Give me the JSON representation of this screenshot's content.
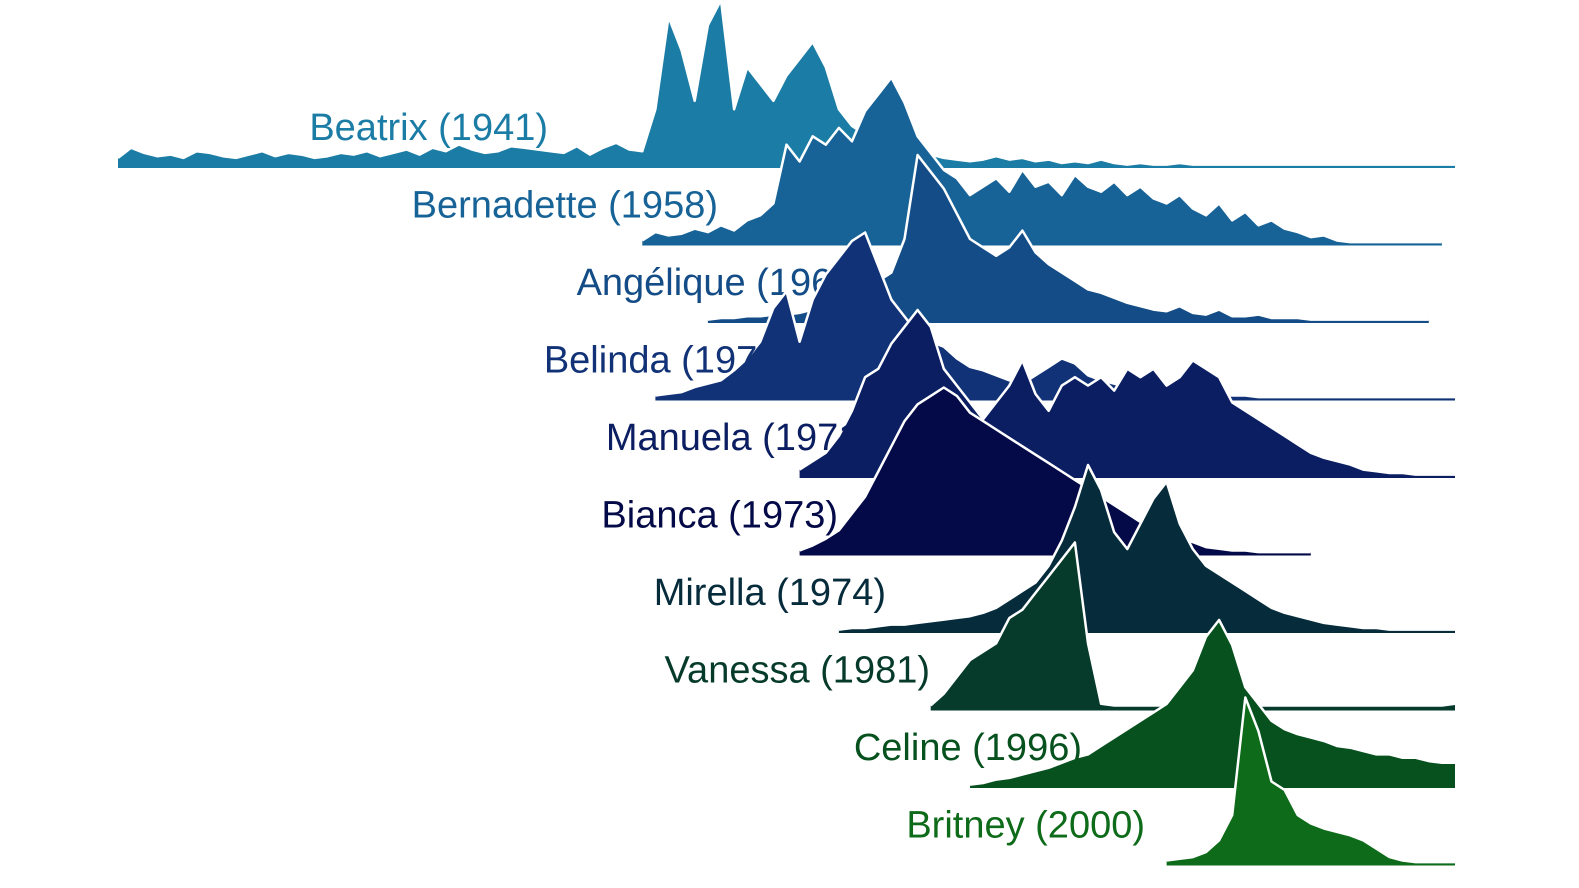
{
  "chart_data": {
    "type": "area",
    "subtype": "ridgeline",
    "title": "",
    "xlabel": "",
    "ylabel": "",
    "xlim": [
      1915,
      2017
    ],
    "grid": false,
    "legend": "none",
    "series": [
      {
        "name": "Beatrix (1941)",
        "color": "#1B7CA5",
        "x": [
          1915,
          1916,
          1917,
          1918,
          1919,
          1920,
          1921,
          1922,
          1923,
          1924,
          1925,
          1926,
          1927,
          1928,
          1929,
          1930,
          1931,
          1932,
          1933,
          1934,
          1935,
          1936,
          1937,
          1938,
          1939,
          1940,
          1941,
          1942,
          1943,
          1944,
          1945,
          1946,
          1947,
          1948,
          1949,
          1950,
          1951,
          1952,
          1953,
          1954,
          1955,
          1956,
          1957,
          1958,
          1959,
          1960,
          1961,
          1962,
          1963,
          1964,
          1965,
          1966,
          1967,
          1968,
          1969,
          1970,
          1971,
          1972,
          1973,
          1974,
          1975,
          1976,
          1977,
          1978,
          1979,
          1980,
          1981,
          1982,
          1983,
          1984,
          1985,
          1986,
          1987,
          1988,
          1989,
          1990,
          1991,
          1992,
          1993,
          1994,
          1995,
          1996,
          1997,
          1998,
          1999,
          2000,
          2001,
          2002,
          2003,
          2004,
          2005,
          2006,
          2007,
          2008,
          2009,
          2010,
          2011,
          2012,
          2013,
          2014,
          2015,
          2016,
          2017
        ],
        "values": [
          0.6,
          1.2,
          0.9,
          0.7,
          0.8,
          0.6,
          1.0,
          0.9,
          0.7,
          0.6,
          0.8,
          1.0,
          0.7,
          0.9,
          0.8,
          0.6,
          0.7,
          0.9,
          0.8,
          1.0,
          0.7,
          0.9,
          1.1,
          0.8,
          1.2,
          1.0,
          1.4,
          1.1,
          0.9,
          1.0,
          1.3,
          1.2,
          1.1,
          1.0,
          0.9,
          1.3,
          0.8,
          1.2,
          1.5,
          1.1,
          1.0,
          3.5,
          9.0,
          7.0,
          4.0,
          8.5,
          10.0,
          3.5,
          6.0,
          5.0,
          4.0,
          5.5,
          6.5,
          7.5,
          6.0,
          3.5,
          2.5,
          2.0,
          1.0,
          1.5,
          1.2,
          1.0,
          0.8,
          0.6,
          0.5,
          0.4,
          0.5,
          0.7,
          0.5,
          0.6,
          0.4,
          0.5,
          0.3,
          0.4,
          0.3,
          0.5,
          0.3,
          0.2,
          0.3,
          0.2,
          0.2,
          0.3,
          0.2,
          0.2,
          0.2,
          0.2,
          0.2,
          0.2,
          0.2,
          0.2,
          0.2,
          0.2,
          0.2,
          0.2,
          0.2,
          0.2,
          0.2,
          0.2,
          0.2,
          0.2,
          0.2,
          0.2,
          0.2
        ]
      },
      {
        "name": "Bernadette (1958)",
        "color": "#176397",
        "x": [
          1955,
          1956,
          1957,
          1958,
          1959,
          1960,
          1961,
          1962,
          1963,
          1964,
          1965,
          1966,
          1967,
          1968,
          1969,
          1970,
          1971,
          1972,
          1973,
          1974,
          1975,
          1976,
          1977,
          1978,
          1979,
          1980,
          1981,
          1982,
          1983,
          1984,
          1985,
          1986,
          1987,
          1988,
          1989,
          1990,
          1991,
          1992,
          1993,
          1994,
          1995,
          1996,
          1997,
          1998,
          1999,
          2000,
          2001,
          2002,
          2003,
          2004,
          2005,
          2006,
          2007,
          2008,
          2009,
          2010,
          2011,
          2012,
          2013,
          2014,
          2015,
          2016
        ],
        "values": [
          0.3,
          0.8,
          0.6,
          0.7,
          1.0,
          0.8,
          1.2,
          0.9,
          1.5,
          1.8,
          2.5,
          6.0,
          5.0,
          6.5,
          6.0,
          7.0,
          6.2,
          8.0,
          9.0,
          10.0,
          8.5,
          6.5,
          5.5,
          4.5,
          4.0,
          3.0,
          3.5,
          4.0,
          3.2,
          4.5,
          3.5,
          3.8,
          3.0,
          4.2,
          3.5,
          3.2,
          3.8,
          3.0,
          3.5,
          2.8,
          2.5,
          3.0,
          2.2,
          1.8,
          2.5,
          1.5,
          2.0,
          1.2,
          1.5,
          1.0,
          0.8,
          0.5,
          0.6,
          0.3,
          0.2,
          0.2,
          0.2,
          0.2,
          0.2,
          0.2,
          0.2,
          0.2
        ]
      },
      {
        "name": "Angélique (1968)",
        "color": "#134C86",
        "x": [
          1960,
          1961,
          1962,
          1963,
          1964,
          1965,
          1966,
          1967,
          1968,
          1969,
          1970,
          1971,
          1972,
          1973,
          1974,
          1975,
          1976,
          1977,
          1978,
          1979,
          1980,
          1981,
          1982,
          1983,
          1984,
          1985,
          1986,
          1987,
          1988,
          1989,
          1990,
          1991,
          1992,
          1993,
          1994,
          1995,
          1996,
          1997,
          1998,
          1999,
          2000,
          2001,
          2002,
          2003,
          2004,
          2005,
          2006,
          2007,
          2008,
          2009,
          2010,
          2011,
          2012,
          2013,
          2014,
          2015
        ],
        "values": [
          0.2,
          0.3,
          0.3,
          0.4,
          0.4,
          0.5,
          0.5,
          0.6,
          0.8,
          1.0,
          1.2,
          2.0,
          1.8,
          2.5,
          3.0,
          5.0,
          10.0,
          9.0,
          8.0,
          6.5,
          5.0,
          4.5,
          4.0,
          4.5,
          5.5,
          4.2,
          3.5,
          3.0,
          2.5,
          2.0,
          1.8,
          1.5,
          1.2,
          1.0,
          0.8,
          0.7,
          1.0,
          0.6,
          0.5,
          0.8,
          0.4,
          0.4,
          0.5,
          0.3,
          0.3,
          0.3,
          0.2,
          0.2,
          0.2,
          0.2,
          0.2,
          0.2,
          0.2,
          0.2,
          0.2,
          0.2
        ]
      },
      {
        "name": "Belinda (1970)",
        "color": "#113276",
        "x": [
          1956,
          1957,
          1958,
          1959,
          1960,
          1961,
          1962,
          1963,
          1964,
          1965,
          1966,
          1967,
          1968,
          1969,
          1970,
          1971,
          1972,
          1973,
          1974,
          1975,
          1976,
          1977,
          1978,
          1979,
          1980,
          1981,
          1982,
          1983,
          1984,
          1985,
          1986,
          1987,
          1988,
          1989,
          1990,
          1991,
          1992,
          1993,
          1994,
          1995,
          1996,
          1997,
          1998,
          1999,
          2000,
          2001,
          2002,
          2003,
          2004,
          2005,
          2006,
          2007,
          2008,
          2009,
          2010,
          2011,
          2012,
          2013,
          2014,
          2015,
          2016,
          2017
        ],
        "values": [
          0.3,
          0.4,
          0.5,
          0.8,
          1.0,
          1.2,
          1.8,
          2.5,
          3.5,
          5.5,
          6.5,
          3.5,
          6.0,
          7.5,
          8.5,
          9.5,
          10.0,
          8.0,
          6.0,
          5.0,
          4.0,
          3.5,
          3.2,
          2.5,
          2.0,
          1.8,
          1.5,
          1.2,
          1.0,
          1.5,
          2.0,
          2.5,
          2.2,
          1.5,
          1.2,
          1.0,
          0.8,
          0.9,
          0.6,
          0.5,
          0.7,
          0.4,
          0.4,
          0.3,
          0.3,
          0.3,
          0.2,
          0.2,
          0.2,
          0.2,
          0.2,
          0.2,
          0.2,
          0.2,
          0.2,
          0.2,
          0.2,
          0.2,
          0.2,
          0.2,
          0.2,
          0.2
        ]
      },
      {
        "name": "Manuela (1971)",
        "color": "#0B1E62",
        "x": [
          1967,
          1968,
          1969,
          1970,
          1971,
          1972,
          1973,
          1974,
          1975,
          1976,
          1977,
          1978,
          1979,
          1980,
          1981,
          1982,
          1983,
          1984,
          1985,
          1986,
          1987,
          1988,
          1989,
          1990,
          1991,
          1992,
          1993,
          1994,
          1995,
          1996,
          1997,
          1998,
          1999,
          2000,
          2001,
          2002,
          2003,
          2004,
          2005,
          2006,
          2007,
          2008,
          2009,
          2010,
          2011,
          2012,
          2013,
          2014,
          2015,
          2016,
          2017
        ],
        "values": [
          0.5,
          1.0,
          1.5,
          2.5,
          4.0,
          6.0,
          6.5,
          8.0,
          9.0,
          10.0,
          9.0,
          6.5,
          5.5,
          4.5,
          3.5,
          4.5,
          5.5,
          7.0,
          5.0,
          4.0,
          5.5,
          6.0,
          5.5,
          6.0,
          5.2,
          6.5,
          6.0,
          6.5,
          5.5,
          6.0,
          7.0,
          6.5,
          6.0,
          4.5,
          4.0,
          3.5,
          3.0,
          2.5,
          2.0,
          1.5,
          1.2,
          1.0,
          0.8,
          0.5,
          0.4,
          0.3,
          0.3,
          0.2,
          0.2,
          0.2,
          0.2
        ]
      },
      {
        "name": "Bianca (1973)",
        "color": "#040A47",
        "x": [
          1967,
          1968,
          1969,
          1970,
          1971,
          1972,
          1973,
          1974,
          1975,
          1976,
          1977,
          1978,
          1979,
          1980,
          1981,
          1982,
          1983,
          1984,
          1985,
          1986,
          1987,
          1988,
          1989,
          1990,
          1991,
          1992,
          1993,
          1994,
          1995,
          1996,
          1997,
          1998,
          1999,
          2000,
          2001,
          2002,
          2003,
          2004,
          2005,
          2006
        ],
        "values": [
          0.3,
          0.6,
          1.0,
          1.5,
          2.5,
          3.5,
          5.0,
          6.5,
          8.0,
          9.0,
          9.5,
          10.0,
          9.5,
          8.5,
          8.0,
          7.5,
          7.0,
          6.5,
          6.0,
          5.5,
          5.0,
          4.5,
          4.0,
          3.5,
          3.0,
          2.5,
          2.0,
          1.5,
          1.2,
          1.0,
          0.8,
          0.5,
          0.4,
          0.3,
          0.3,
          0.2,
          0.2,
          0.2,
          0.2,
          0.2
        ]
      },
      {
        "name": "Mirella (1974)",
        "color": "#062C3C",
        "x": [
          1970,
          1971,
          1972,
          1973,
          1974,
          1975,
          1976,
          1977,
          1978,
          1979,
          1980,
          1981,
          1982,
          1983,
          1984,
          1985,
          1986,
          1987,
          1988,
          1989,
          1990,
          1991,
          1992,
          1993,
          1994,
          1995,
          1996,
          1997,
          1998,
          1999,
          2000,
          2001,
          2002,
          2003,
          2004,
          2005,
          2006,
          2007,
          2008,
          2009,
          2010,
          2011,
          2012,
          2013,
          2014,
          2015,
          2016,
          2017
        ],
        "values": [
          0.2,
          0.3,
          0.3,
          0.4,
          0.5,
          0.5,
          0.6,
          0.7,
          0.8,
          0.9,
          1.0,
          1.2,
          1.5,
          2.0,
          2.5,
          3.0,
          4.0,
          5.5,
          7.5,
          10.0,
          8.5,
          6.0,
          5.0,
          6.5,
          8.0,
          9.0,
          6.5,
          5.0,
          4.0,
          3.5,
          3.0,
          2.5,
          2.0,
          1.5,
          1.2,
          1.0,
          0.8,
          0.6,
          0.5,
          0.4,
          0.3,
          0.3,
          0.2,
          0.2,
          0.2,
          0.2,
          0.2,
          0.2
        ]
      },
      {
        "name": "Vanessa (1981)",
        "color": "#063A2A",
        "x": [
          1977,
          1978,
          1979,
          1980,
          1981,
          1982,
          1983,
          1984,
          1985,
          1986,
          1987,
          1988,
          1989,
          1990,
          1991,
          1992,
          1993,
          1994,
          1995,
          1996,
          1997,
          1998,
          1999,
          2000,
          2001,
          2002,
          2003,
          2004,
          2005,
          2006,
          2007,
          2008,
          2009,
          2010,
          2011,
          2012,
          2013,
          2014,
          2015,
          2016,
          2017
        ],
        "values": [
          0.3,
          1.0,
          2.0,
          3.0,
          3.5,
          4.0,
          5.5,
          6.0,
          7.0,
          8.0,
          9.0,
          10.0,
          4.0,
          0.4,
          0.3,
          0.3,
          0.3,
          0.3,
          0.3,
          0.3,
          0.3,
          0.3,
          0.3,
          0.3,
          0.3,
          0.3,
          0.3,
          0.3,
          0.3,
          0.3,
          0.3,
          0.3,
          0.3,
          0.3,
          0.3,
          0.3,
          0.3,
          0.3,
          0.3,
          0.3,
          0.4
        ]
      },
      {
        "name": "Celine (1996)",
        "color": "#06511E",
        "x": [
          1980,
          1981,
          1982,
          1983,
          1984,
          1985,
          1986,
          1987,
          1988,
          1989,
          1990,
          1991,
          1992,
          1993,
          1994,
          1995,
          1996,
          1997,
          1998,
          1999,
          2000,
          2001,
          2002,
          2003,
          2004,
          2005,
          2006,
          2007,
          2008,
          2009,
          2010,
          2011,
          2012,
          2013,
          2014,
          2015,
          2016,
          2017
        ],
        "values": [
          0.2,
          0.3,
          0.5,
          0.6,
          0.8,
          1.0,
          1.2,
          1.5,
          1.8,
          2.0,
          2.5,
          3.0,
          3.5,
          4.0,
          4.5,
          5.0,
          6.0,
          7.0,
          9.0,
          10.0,
          8.5,
          6.0,
          5.0,
          4.0,
          3.5,
          3.2,
          3.0,
          2.8,
          2.5,
          2.4,
          2.2,
          2.0,
          2.0,
          1.8,
          1.8,
          1.6,
          1.5,
          1.5
        ]
      },
      {
        "name": "Britney (2000)",
        "color": "#0D6B19",
        "x": [
          1995,
          1996,
          1997,
          1998,
          1999,
          2000,
          2001,
          2002,
          2003,
          2004,
          2005,
          2006,
          2007,
          2008,
          2009,
          2010,
          2011,
          2012,
          2013,
          2014,
          2015,
          2016,
          2017
        ],
        "values": [
          0.3,
          0.4,
          0.5,
          0.8,
          1.5,
          3.0,
          10.0,
          8.0,
          5.0,
          4.5,
          3.0,
          2.5,
          2.2,
          2.0,
          1.8,
          1.5,
          1.0,
          0.5,
          0.3,
          0.2,
          0.2,
          0.2,
          0.2
        ]
      }
    ]
  }
}
